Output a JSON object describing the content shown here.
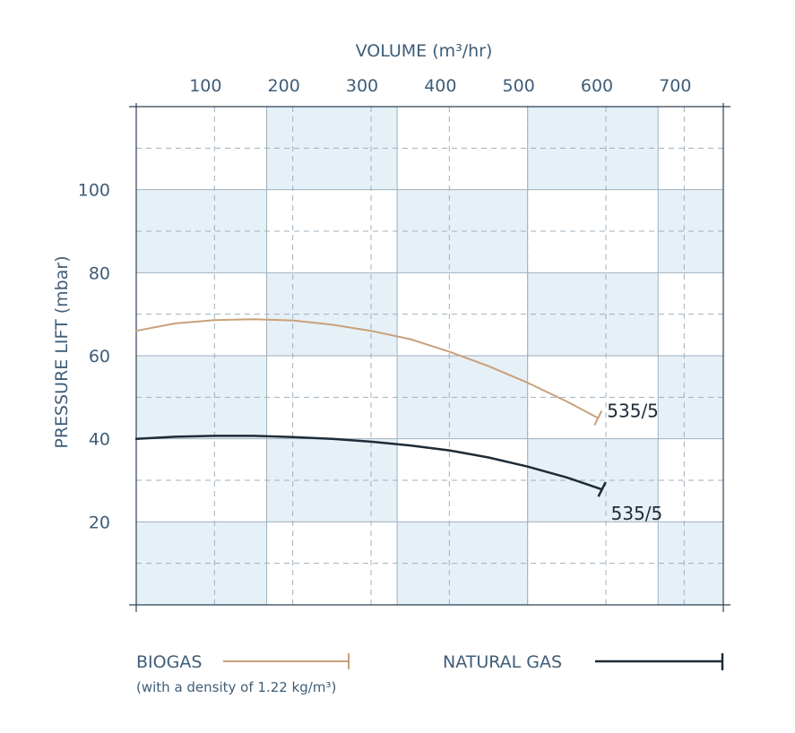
{
  "chart_data": {
    "type": "line",
    "xlabel": "VOLUME (m³/hr)",
    "ylabel": "PRESSURE LIFT (mbar)",
    "xlim": [
      0,
      750
    ],
    "ylim": [
      0,
      120
    ],
    "x_ticks": [
      "100",
      "200",
      "300",
      "400",
      "500",
      "600",
      "700"
    ],
    "y_ticks": [
      "20",
      "40",
      "60",
      "80",
      "100"
    ],
    "grid": true,
    "series": [
      {
        "name": "BIOGAS",
        "color": "#c9a07a",
        "end_label": "535/5",
        "x": [
          0,
          50,
          100,
          150,
          200,
          250,
          300,
          350,
          400,
          450,
          500,
          550,
          590
        ],
        "y": [
          66,
          67.8,
          68.6,
          68.8,
          68.5,
          67.5,
          66,
          64,
          61,
          57.5,
          53.5,
          49,
          45
        ]
      },
      {
        "name": "NATURAL GAS",
        "color": "#1d2b38",
        "end_label": "535/5",
        "x": [
          0,
          50,
          100,
          150,
          200,
          250,
          300,
          350,
          400,
          450,
          500,
          550,
          595
        ],
        "y": [
          40,
          40.5,
          40.7,
          40.7,
          40.4,
          40,
          39.3,
          38.4,
          37.2,
          35.5,
          33.3,
          30.7,
          27.8
        ]
      }
    ],
    "legend": {
      "biogas_label": "BIOGAS",
      "biogas_note": "(with a density of 1.22 kg/m³)",
      "natural_gas_label": "NATURAL GAS",
      "placement": "bottom"
    },
    "colors": {
      "band": "#e6f0f7",
      "band_light": "#f1f6fa",
      "grid_solid": "#9fb0bf",
      "grid_dashed": "#9fb0bf",
      "text": "#3f5d78"
    }
  }
}
